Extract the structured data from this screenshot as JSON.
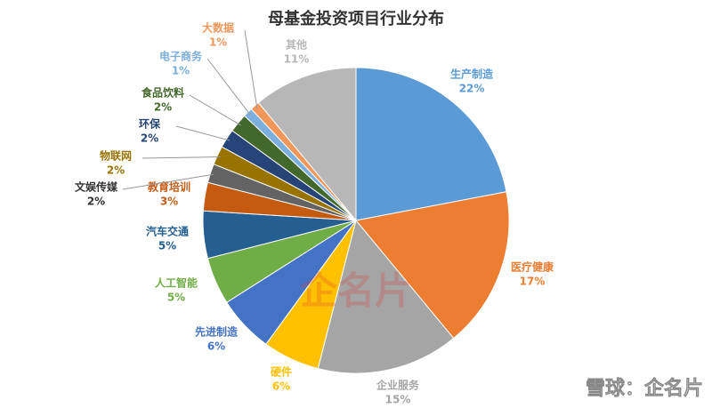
{
  "chart_data": {
    "type": "pie",
    "title": "母基金投资项目行业分布",
    "categories": [
      "生产制造",
      "医疗健康",
      "企业服务",
      "硬件",
      "先进制造",
      "人工智能",
      "汽车交通",
      "教育培训",
      "文娱传媒",
      "物联网",
      "环保",
      "食品饮料",
      "电子商务",
      "大数据",
      "其他"
    ],
    "values": [
      22,
      17,
      15,
      6,
      6,
      5,
      5,
      3,
      2,
      2,
      2,
      2,
      1,
      1,
      11
    ],
    "value_labels": [
      "22%",
      "17%",
      "15%",
      "6%",
      "6%",
      "5%",
      "5%",
      "3%",
      "2%",
      "2%",
      "2%",
      "2%",
      "1%",
      "1%",
      "11%"
    ],
    "colors": [
      "#5b9bd5",
      "#ed7d31",
      "#a5a5a5",
      "#ffc000",
      "#4472c4",
      "#70ad47",
      "#255e91",
      "#c55a11",
      "#636363",
      "#997300",
      "#264478",
      "#43682b",
      "#7cafdd",
      "#f1975a",
      "#b7b7b7"
    ],
    "watermarks": [
      "企名片",
      "雪球：企名片"
    ]
  }
}
